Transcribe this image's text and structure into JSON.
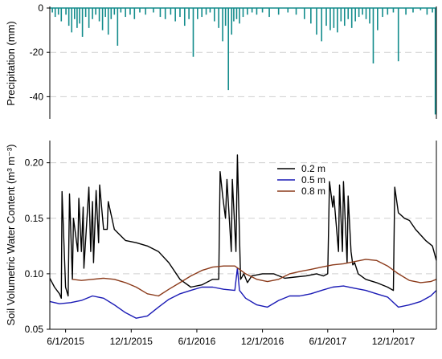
{
  "chart_data": [
    {
      "type": "bar",
      "ylabel": "Precipitation (mm)",
      "ylim": [
        -50,
        0
      ],
      "yticks": [
        0,
        -20,
        -40
      ],
      "grid": "horizontal dashed",
      "color": "#138c8c",
      "x_range": [
        "2015-04-18",
        "2018-03-31"
      ],
      "x": [
        "2015-04-25",
        "2015-05-03",
        "2015-05-12",
        "2015-05-20",
        "2015-06-02",
        "2015-06-10",
        "2015-06-18",
        "2015-06-26",
        "2015-07-03",
        "2015-07-10",
        "2015-07-18",
        "2015-07-27",
        "2015-08-05",
        "2015-08-15",
        "2015-08-24",
        "2015-09-03",
        "2015-09-12",
        "2015-09-20",
        "2015-09-28",
        "2015-10-06",
        "2015-10-15",
        "2015-10-24",
        "2015-11-02",
        "2015-11-15",
        "2015-11-28",
        "2015-12-10",
        "2015-12-25",
        "2016-01-10",
        "2016-02-01",
        "2016-02-20",
        "2016-03-05",
        "2016-03-20",
        "2016-04-02",
        "2016-04-15",
        "2016-04-28",
        "2016-05-10",
        "2016-05-22",
        "2016-06-03",
        "2016-06-15",
        "2016-06-27",
        "2016-07-08",
        "2016-07-20",
        "2016-08-01",
        "2016-08-12",
        "2016-08-20",
        "2016-08-28",
        "2016-09-06",
        "2016-09-12",
        "2016-09-20",
        "2016-09-28",
        "2016-10-08",
        "2016-10-20",
        "2016-11-02",
        "2016-11-15",
        "2016-12-01",
        "2016-12-20",
        "2017-01-15",
        "2017-02-10",
        "2017-03-05",
        "2017-03-28",
        "2017-04-15",
        "2017-05-01",
        "2017-05-15",
        "2017-05-28",
        "2017-06-08",
        "2017-06-18",
        "2017-06-28",
        "2017-07-08",
        "2017-07-18",
        "2017-07-28",
        "2017-08-07",
        "2017-08-17",
        "2017-08-27",
        "2017-09-06",
        "2017-09-16",
        "2017-09-26",
        "2017-10-06",
        "2017-10-18",
        "2017-11-01",
        "2017-11-15",
        "2017-12-01",
        "2017-12-15",
        "2018-01-05",
        "2018-01-25",
        "2018-02-15",
        "2018-03-05",
        "2018-03-20",
        "2018-03-28"
      ],
      "values": [
        -2,
        -4,
        -3,
        -6,
        -3,
        -8,
        -11,
        -5,
        -9,
        -7,
        -13,
        -4,
        -9,
        -5,
        -3,
        -6,
        -10,
        -4,
        -12,
        -5,
        -3,
        -17,
        -2,
        -4,
        -3,
        -5,
        -2,
        -3,
        -2,
        -4,
        -5,
        -3,
        -6,
        -4,
        -8,
        -5,
        -22,
        -5,
        -4,
        -3,
        -2,
        -6,
        -9,
        -15,
        -8,
        -37,
        -12,
        -6,
        -5,
        -7,
        -4,
        -3,
        -2,
        -3,
        -2,
        -4,
        -3,
        -2,
        -3,
        -5,
        -7,
        -12,
        -15,
        -8,
        -10,
        -9,
        -11,
        -6,
        -8,
        -5,
        -9,
        -6,
        -4,
        -3,
        -5,
        -7,
        -25,
        -10,
        -4,
        -3,
        -2,
        -24,
        -3,
        -2,
        -1,
        -3,
        -2,
        -48
      ]
    },
    {
      "type": "line",
      "ylabel": "Soil Volumetric Water Content (m³ m⁻³)",
      "ylim": [
        0.05,
        0.22
      ],
      "yticks": [
        0.05,
        0.1,
        0.15,
        0.2
      ],
      "x_tick_labels": [
        "6/1/2015",
        "12/1/2015",
        "6/1/2016",
        "12/1/2016",
        "6/1/2017",
        "12/1/2017"
      ],
      "x_range": [
        "2015-04-18",
        "2018-03-31"
      ],
      "grid": "horizontal dashed",
      "legend_position": "top-center",
      "series": [
        {
          "name": "0.2 m",
          "color": "#000000",
          "x": [
            "2015-04-18",
            "2015-05-01",
            "2015-05-15",
            "2015-05-20",
            "2015-05-22",
            "2015-06-01",
            "2015-06-08",
            "2015-06-12",
            "2015-06-20",
            "2015-06-23",
            "2015-07-05",
            "2015-07-08",
            "2015-07-15",
            "2015-07-20",
            "2015-07-22",
            "2015-08-05",
            "2015-08-10",
            "2015-08-15",
            "2015-08-18",
            "2015-08-25",
            "2015-09-01",
            "2015-09-04",
            "2015-09-15",
            "2015-09-25",
            "2015-09-28",
            "2015-10-15",
            "2015-11-15",
            "2015-12-15",
            "2016-01-15",
            "2016-02-15",
            "2016-03-15",
            "2016-04-15",
            "2016-05-15",
            "2016-06-15",
            "2016-07-15",
            "2016-08-01",
            "2016-08-05",
            "2016-08-12",
            "2016-08-20",
            "2016-08-24",
            "2016-09-05",
            "2016-09-08",
            "2016-09-18",
            "2016-09-22",
            "2016-10-01",
            "2016-10-10",
            "2016-10-20",
            "2016-11-01",
            "2016-12-01",
            "2017-01-01",
            "2017-02-01",
            "2017-03-01",
            "2017-04-01",
            "2017-05-01",
            "2017-05-20",
            "2017-06-01",
            "2017-06-06",
            "2017-06-15",
            "2017-06-18",
            "2017-07-01",
            "2017-07-04",
            "2017-07-12",
            "2017-07-15",
            "2017-07-25",
            "2017-07-28",
            "2017-08-05",
            "2017-08-10",
            "2017-08-15",
            "2017-08-25",
            "2017-09-15",
            "2017-10-15",
            "2017-11-15",
            "2017-12-01",
            "2017-12-05",
            "2017-12-15",
            "2018-01-01",
            "2018-01-15",
            "2018-02-01",
            "2018-03-01",
            "2018-03-20",
            "2018-03-31"
          ],
          "values": [
            0.096,
            0.088,
            0.082,
            0.078,
            0.174,
            0.088,
            0.08,
            0.172,
            0.095,
            0.15,
            0.12,
            0.168,
            0.12,
            0.16,
            0.105,
            0.178,
            0.12,
            0.165,
            0.11,
            0.175,
            0.128,
            0.18,
            0.14,
            0.14,
            0.165,
            0.14,
            0.13,
            0.128,
            0.125,
            0.12,
            0.11,
            0.095,
            0.088,
            0.09,
            0.095,
            0.095,
            0.192,
            0.17,
            0.15,
            0.185,
            0.12,
            0.185,
            0.12,
            0.207,
            0.095,
            0.1,
            0.092,
            0.098,
            0.1,
            0.1,
            0.096,
            0.097,
            0.098,
            0.1,
            0.098,
            0.1,
            0.183,
            0.16,
            0.17,
            0.12,
            0.18,
            0.12,
            0.183,
            0.11,
            0.17,
            0.12,
            0.108,
            0.11,
            0.1,
            0.095,
            0.092,
            0.088,
            0.085,
            0.178,
            0.155,
            0.15,
            0.148,
            0.14,
            0.13,
            0.125,
            0.112
          ]
        },
        {
          "name": "0.5 m",
          "color": "#1a1ab5",
          "x": [
            "2015-04-18",
            "2015-05-15",
            "2015-06-15",
            "2015-07-15",
            "2015-08-15",
            "2015-09-15",
            "2015-10-15",
            "2015-11-15",
            "2015-12-15",
            "2016-01-15",
            "2016-02-15",
            "2016-03-15",
            "2016-04-15",
            "2016-05-15",
            "2016-06-15",
            "2016-07-15",
            "2016-08-15",
            "2016-09-15",
            "2016-09-22",
            "2016-09-28",
            "2016-10-15",
            "2016-11-15",
            "2016-12-15",
            "2017-01-15",
            "2017-02-15",
            "2017-03-15",
            "2017-04-15",
            "2017-05-15",
            "2017-06-15",
            "2017-07-15",
            "2017-08-15",
            "2017-09-15",
            "2017-10-15",
            "2017-11-15",
            "2017-12-15",
            "2018-01-15",
            "2018-02-15",
            "2018-03-15",
            "2018-03-31"
          ],
          "values": [
            0.075,
            0.073,
            0.074,
            0.076,
            0.08,
            0.078,
            0.072,
            0.065,
            0.06,
            0.062,
            0.07,
            0.077,
            0.082,
            0.085,
            0.088,
            0.088,
            0.086,
            0.085,
            0.105,
            0.085,
            0.078,
            0.072,
            0.07,
            0.076,
            0.08,
            0.08,
            0.082,
            0.085,
            0.088,
            0.089,
            0.087,
            0.085,
            0.082,
            0.079,
            0.07,
            0.072,
            0.075,
            0.08,
            0.085
          ]
        },
        {
          "name": "0.8 m",
          "color": "#8b3a1a",
          "x": [
            "2015-06-20",
            "2015-07-15",
            "2015-08-15",
            "2015-09-15",
            "2015-10-15",
            "2015-11-15",
            "2015-12-15",
            "2016-01-15",
            "2016-02-15",
            "2016-03-15",
            "2016-04-15",
            "2016-05-15",
            "2016-06-15",
            "2016-07-15",
            "2016-08-15",
            "2016-09-15",
            "2016-10-15",
            "2016-11-15",
            "2016-12-15",
            "2017-01-15",
            "2017-02-15",
            "2017-03-15",
            "2017-04-15",
            "2017-05-15",
            "2017-06-15",
            "2017-07-15",
            "2017-08-15",
            "2017-09-15",
            "2017-10-15",
            "2017-11-15",
            "2017-12-15",
            "2018-01-15",
            "2018-02-15",
            "2018-03-15",
            "2018-03-31"
          ],
          "values": [
            0.095,
            0.094,
            0.095,
            0.096,
            0.095,
            0.092,
            0.088,
            0.082,
            0.08,
            0.086,
            0.092,
            0.098,
            0.103,
            0.106,
            0.107,
            0.107,
            0.1,
            0.095,
            0.093,
            0.095,
            0.1,
            0.102,
            0.104,
            0.106,
            0.108,
            0.109,
            0.111,
            0.113,
            0.112,
            0.107,
            0.1,
            0.094,
            0.092,
            0.093,
            0.095
          ]
        }
      ]
    }
  ]
}
